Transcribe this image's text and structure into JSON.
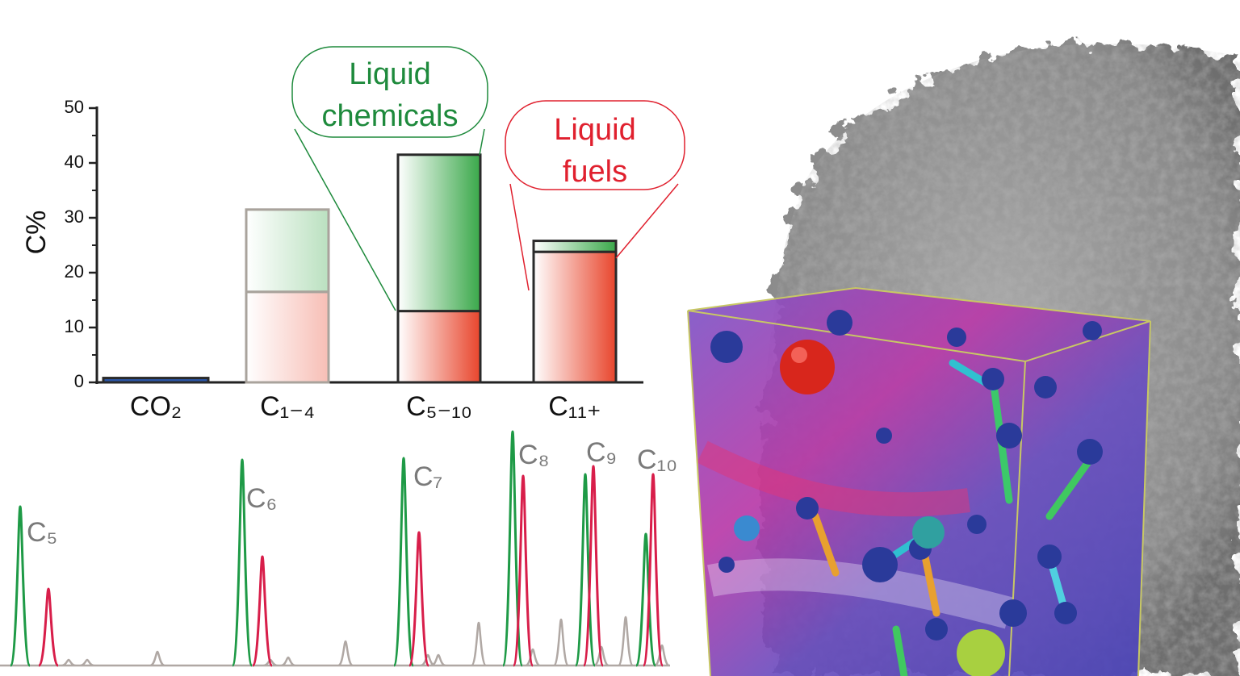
{
  "chart_data": {
    "type": "stacked_bar",
    "ylabel": "C%",
    "categories": [
      "CO₂",
      "C₁₋₄",
      "C₅₋₁₀",
      "C₁₁₊"
    ],
    "series": [
      {
        "colors": [
          "#2b56a8",
          "#e8452c",
          "#e8452c",
          "#e8452c"
        ],
        "values": [
          0.8,
          16.5,
          13,
          23.8
        ]
      },
      {
        "colors": [
          "#3aa84a",
          "#3aa84a",
          "#3aa84a",
          "#3aa84a"
        ],
        "values": [
          0,
          15,
          28.5,
          2
        ]
      }
    ],
    "opacity": [
      1,
      0.35,
      1,
      1
    ],
    "ylim": [
      0,
      50
    ],
    "yticks": [
      0,
      10,
      20,
      30,
      40,
      50
    ],
    "annotations": [
      {
        "lines": [
          "Liquid",
          "chemicals"
        ],
        "color": "#1e8a3c"
      },
      {
        "lines": [
          "Liquid",
          "fuels"
        ],
        "color": "#e0202e"
      }
    ],
    "chromatogram_labels": [
      "C₅",
      "C₆",
      "C₇",
      "C₈",
      "C₉",
      "C₁₀"
    ]
  }
}
